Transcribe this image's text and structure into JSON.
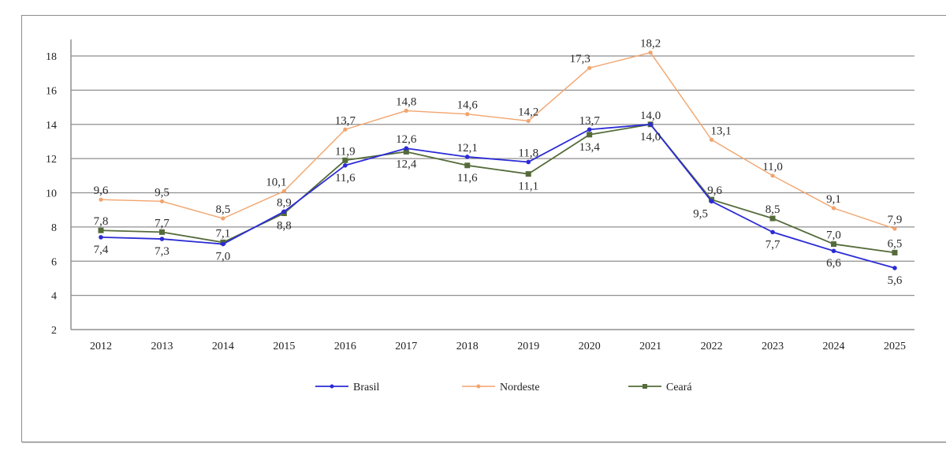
{
  "chart_data": {
    "type": "line",
    "title": "",
    "xlabel": "",
    "ylabel": "",
    "ylim": [
      2,
      18
    ],
    "yticks": [
      "2",
      "4",
      "6",
      "8",
      "10",
      "12",
      "14",
      "16",
      "18"
    ],
    "grid": true,
    "legend_position": "bottom",
    "categories": [
      "2012",
      "2013",
      "2014",
      "2015",
      "2016",
      "2017",
      "2018",
      "2019",
      "2020",
      "2021",
      "2022",
      "2023",
      "2024",
      "2025"
    ],
    "series": [
      {
        "name": "Brasil",
        "color": "#2b2bd6",
        "marker": "circle",
        "values": [
          7.4,
          7.3,
          7.0,
          8.9,
          11.6,
          12.6,
          12.1,
          11.8,
          13.7,
          14.0,
          9.5,
          7.7,
          6.6,
          5.6
        ],
        "labels": [
          "7,4",
          "7,3",
          "7,0",
          "8,9",
          "11,6",
          "12,6",
          "12,1",
          "11,8",
          "13,7",
          "14,0",
          "9,5",
          "7,7",
          "6,6",
          "5,6"
        ],
        "label_pos": [
          "below",
          "below",
          "below",
          "above",
          "below",
          "above",
          "above",
          "above",
          "above",
          "below",
          "below",
          "below",
          "below",
          "below"
        ]
      },
      {
        "name": "Nordeste",
        "color": "#f2a46c",
        "marker": "circle",
        "values": [
          9.6,
          9.5,
          8.5,
          10.1,
          13.7,
          14.8,
          14.6,
          14.2,
          17.3,
          18.2,
          13.1,
          11.0,
          9.1,
          7.9
        ],
        "labels": [
          "9,6",
          "9,5",
          "8,5",
          "10,1",
          "13,7",
          "14,8",
          "14,6",
          "14,2",
          "17,3",
          "18,2",
          "13,1",
          "11,0",
          "9,1",
          "7,9"
        ],
        "label_pos": [
          "above",
          "above",
          "above",
          "above",
          "above",
          "above",
          "above",
          "above",
          "above",
          "above",
          "above",
          "above",
          "above",
          "above"
        ]
      },
      {
        "name": "Ceará",
        "color": "#556b3a",
        "marker": "square",
        "values": [
          7.8,
          7.7,
          7.1,
          8.8,
          11.9,
          12.4,
          11.6,
          11.1,
          13.4,
          14.0,
          9.6,
          8.5,
          7.0,
          6.5
        ],
        "labels": [
          "7,8",
          "7,7",
          "7,1",
          "8,8",
          "11,9",
          "12,4",
          "11,6",
          "11,1",
          "13,4",
          "14,0",
          "9,6",
          "8,5",
          "7,0",
          "6,5"
        ],
        "label_pos": [
          "above",
          "above",
          "above",
          "below",
          "above",
          "below",
          "below",
          "below",
          "below",
          "above",
          "above",
          "above",
          "above",
          "above"
        ]
      }
    ]
  }
}
